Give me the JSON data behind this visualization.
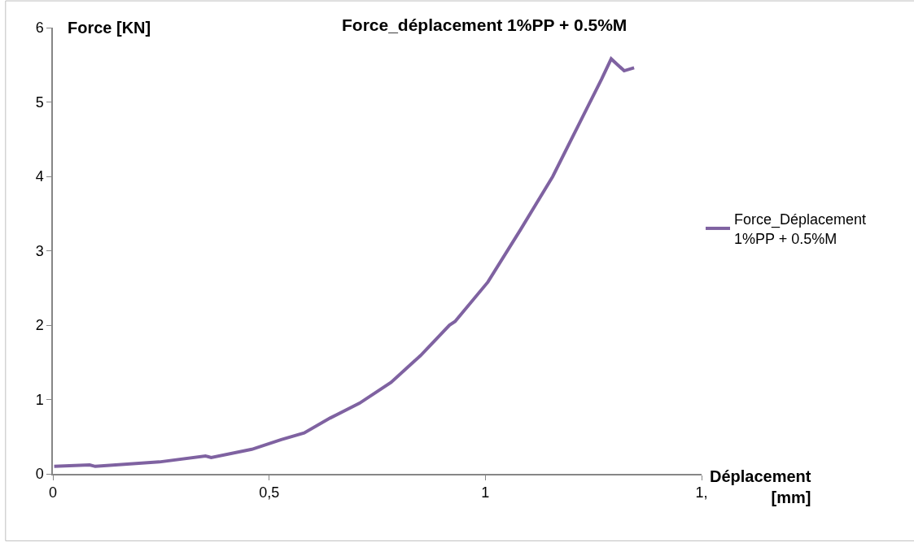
{
  "chart_data": {
    "type": "line",
    "title": "Force_déplacement 1%PP + 0.5%M",
    "xlabel": "Déplacement [mm]",
    "ylabel": "Force [KN]",
    "xlim": [
      0,
      1.5
    ],
    "xticks": [
      0,
      {
        "value": 0.5,
        "label": "0,5"
      },
      1,
      {
        "value": 1.5,
        "label": "1,"
      }
    ],
    "ylim": [
      0,
      6
    ],
    "yticks": [
      0,
      1,
      2,
      3,
      4,
      5,
      6
    ],
    "legend": "right",
    "marker": "none",
    "line_style": "solid",
    "series": [
      {
        "name": "Force_Déplacement 1%PP + 0.5%M",
        "color": "#7f62a1",
        "x": [
          0.003,
          0.085,
          0.098,
          0.246,
          0.353,
          0.366,
          0.46,
          0.528,
          0.581,
          0.641,
          0.709,
          0.782,
          0.85,
          0.917,
          0.93,
          1.006,
          1.081,
          1.156,
          1.231,
          1.269,
          1.291,
          1.321,
          1.344
        ],
        "values": [
          0.1,
          0.12,
          0.1,
          0.16,
          0.24,
          0.22,
          0.33,
          0.46,
          0.55,
          0.75,
          0.95,
          1.23,
          1.59,
          2.0,
          2.05,
          2.58,
          3.28,
          4.0,
          4.87,
          5.31,
          5.58,
          5.42,
          5.46
        ]
      }
    ]
  }
}
